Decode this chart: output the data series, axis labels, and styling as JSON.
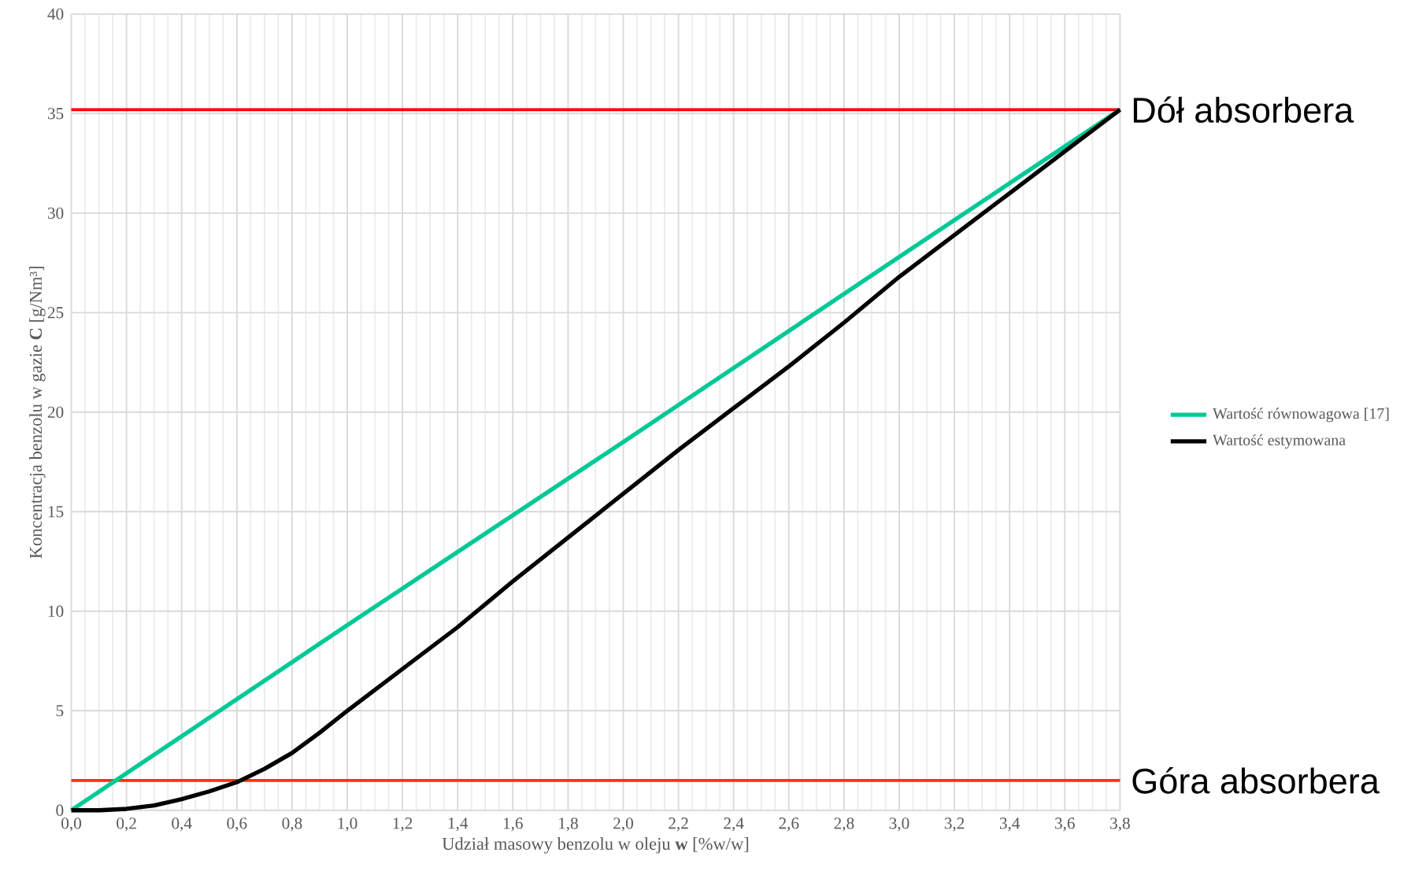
{
  "chart_data": {
    "type": "line",
    "xlabel": "Udział masowy benzolu w oleju **w** [%w/w]",
    "ylabel": "Koncentracja benzolu w gazie **C** [g/Nm³]",
    "series": [
      {
        "name": "Wartość równowagowa [17]",
        "color": "#00c896",
        "x": [
          0,
          1.0,
          2.0,
          3.0,
          3.8
        ],
        "values": [
          0,
          9.3,
          18.5,
          27.8,
          35.2
        ]
      },
      {
        "name": "Wartość estymowana",
        "color": "#000000",
        "x": [
          0,
          0.1,
          0.2,
          0.3,
          0.4,
          0.5,
          0.6,
          0.7,
          0.8,
          0.9,
          1.0,
          1.2,
          1.4,
          1.6,
          1.8,
          2.0,
          2.2,
          2.4,
          2.6,
          2.8,
          3.0,
          3.2,
          3.4,
          3.6,
          3.8
        ],
        "values": [
          0,
          0,
          0.07,
          0.24,
          0.56,
          0.95,
          1.41,
          2.08,
          2.88,
          3.9,
          5.0,
          7.1,
          9.2,
          11.5,
          13.7,
          15.9,
          18.1,
          20.2,
          22.3,
          24.5,
          26.8,
          28.9,
          31.0,
          33.1,
          35.2
        ]
      }
    ],
    "xlim": [
      0,
      3.8
    ],
    "xticks": [
      {
        "value": 0,
        "label": "0,0"
      },
      {
        "value": 0.2,
        "label": "0,2"
      },
      {
        "value": 0.4,
        "label": "0,4"
      },
      {
        "value": 0.6,
        "label": "0,6"
      },
      {
        "value": 0.8,
        "label": "0,8"
      },
      {
        "value": 1.0,
        "label": "1,0"
      },
      {
        "value": 1.2,
        "label": "1,2"
      },
      {
        "value": 1.4,
        "label": "1,4"
      },
      {
        "value": 1.6,
        "label": "1,6"
      },
      {
        "value": 1.8,
        "label": "1,8"
      },
      {
        "value": 2.0,
        "label": "2,0"
      },
      {
        "value": 2.2,
        "label": "2,2"
      },
      {
        "value": 2.4,
        "label": "2,4"
      },
      {
        "value": 2.6,
        "label": "2,6"
      },
      {
        "value": 2.8,
        "label": "2,8"
      },
      {
        "value": 3.0,
        "label": "3,0"
      },
      {
        "value": 3.2,
        "label": "3,2"
      },
      {
        "value": 3.4,
        "label": "3,4"
      },
      {
        "value": 3.6,
        "label": "3,6"
      },
      {
        "value": 3.8,
        "label": "3,8"
      }
    ],
    "ylim": [
      0,
      40
    ],
    "yticks": [
      0,
      5,
      10,
      15,
      20,
      25,
      30,
      35,
      40
    ],
    "ref_lines": [
      {
        "axis": "y",
        "value": 35.2,
        "label": "Dół absorbera",
        "color": "#ff0000"
      },
      {
        "axis": "y",
        "value": 1.5,
        "label": "Góra absorbera",
        "color": "#ff3300"
      }
    ],
    "grid": true,
    "legend": "right",
    "marker": "none",
    "line_style": "solid"
  }
}
